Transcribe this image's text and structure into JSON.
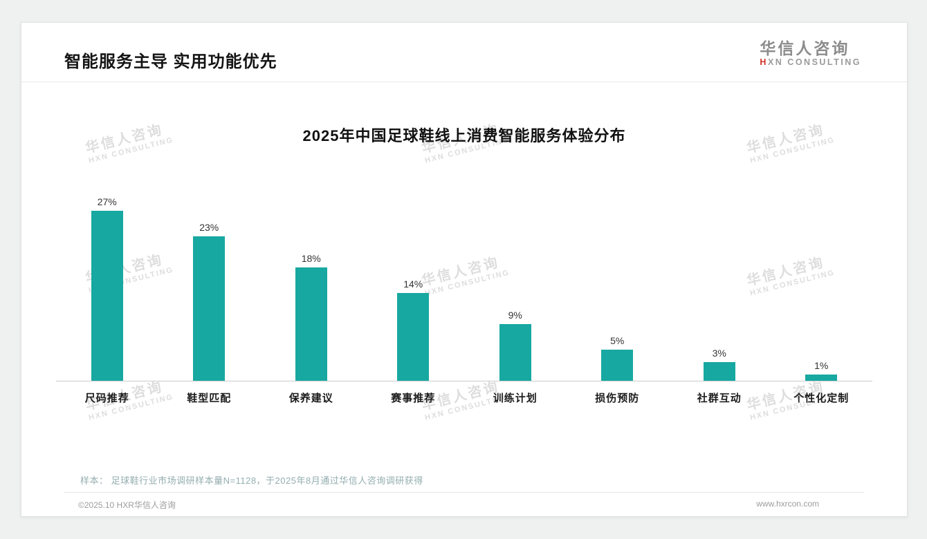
{
  "page": {
    "header": {
      "title": "智能服务主导 实用功能优先"
    },
    "logo": {
      "cn": "华信人咨询",
      "en_accent": "H",
      "en_rest": "XN CONSULTING"
    },
    "watermark": {
      "cn": "华信人咨询",
      "en": "HXN CONSULTING"
    },
    "note": "样本： 足球鞋行业市场调研样本量N=1128，于2025年8月通过华信人咨询调研获得",
    "footer": {
      "left": "©2025.10 HXR华信人咨询",
      "right": "www.hxrcon.com"
    }
  },
  "chart_data": {
    "type": "bar",
    "title": "2025年中国足球鞋线上消费智能服务体验分布",
    "categories": [
      "尺码推荐",
      "鞋型匹配",
      "保养建议",
      "赛事推荐",
      "训练计划",
      "损伤预防",
      "社群互动",
      "个性化定制"
    ],
    "values": [
      27,
      23,
      18,
      14,
      9,
      5,
      3,
      1
    ],
    "value_labels": [
      "27%",
      "23%",
      "18%",
      "14%",
      "9%",
      "5%",
      "3%",
      "1%"
    ],
    "bar_color": "#17a8a1",
    "xlabel": "",
    "ylabel": "",
    "ylim": [
      0,
      30
    ],
    "grid": false,
    "legend": "none"
  }
}
